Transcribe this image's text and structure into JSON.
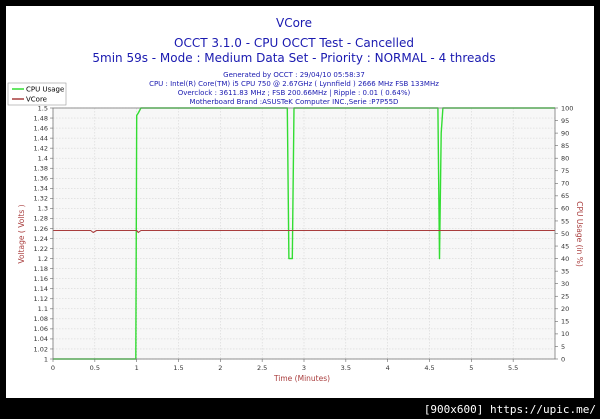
{
  "chart_data": {
    "type": "line",
    "title": "VCore",
    "subtitle_1": "OCCT 3.1.0 - CPU OCCT Test - Cancelled",
    "subtitle_2": "5min 59s - Mode : Medium Data Set - Priority : NORMAL - 4 threads",
    "info_lines": [
      "Generated by OCCT : 29/04/10 05:58:37",
      "CPU : Intel(R) Core(TM) i5 CPU 750 @ 2.67GHz ( Lynnfield ) 2666 MHz FSB 133MHz",
      "Overclock : 3611.83 MHz ; FSB 200.66MHz | Ripple : 0.01 ( 0.64%)",
      "Motherboard Brand :ASUSTeK Computer INC.,Serie :P7P55D"
    ],
    "xlabel": "Time (Minutes)",
    "ylabel_left": "Voltage ( Volts )",
    "ylabel_right": "CPU Usage (in %)",
    "xlim": [
      0,
      6
    ],
    "ylim_left": [
      1.0,
      1.5
    ],
    "ylim_right": [
      0,
      100
    ],
    "x_ticks": [
      0,
      0.5,
      1,
      1.5,
      2,
      2.5,
      3,
      3.5,
      4,
      4.5,
      5,
      5.5
    ],
    "x_tick_labels": [
      "0",
      "0.5",
      "1",
      "1.5",
      "2",
      "2.5",
      "3",
      "3.5",
      "4",
      "4.5",
      "5",
      "5.5"
    ],
    "y_left_ticks": [
      1,
      1.02,
      1.04,
      1.06,
      1.08,
      1.1,
      1.12,
      1.14,
      1.16,
      1.18,
      1.2,
      1.22,
      1.24,
      1.26,
      1.28,
      1.3,
      1.32,
      1.34,
      1.36,
      1.38,
      1.4,
      1.42,
      1.44,
      1.46,
      1.48,
      1.5
    ],
    "y_left_tick_labels": [
      "1",
      "1.02",
      "1.04",
      "1.06",
      "1.08",
      "1.1",
      "1.12",
      "1.14",
      "1.16",
      "1.18",
      "1.2",
      "1.22",
      "1.24",
      "1.26",
      "1.28",
      "1.3",
      "1.32",
      "1.34",
      "1.36",
      "1.38",
      "1.4",
      "1.42",
      "1.44",
      "1.46",
      "1.48",
      "1.5"
    ],
    "y_right_ticks": [
      0,
      5,
      10,
      15,
      20,
      25,
      30,
      35,
      40,
      45,
      50,
      55,
      60,
      65,
      70,
      75,
      80,
      85,
      90,
      95,
      100
    ],
    "y_right_tick_labels": [
      "0",
      "5",
      "10",
      "15",
      "20",
      "25",
      "30",
      "35",
      "40",
      "45",
      "50",
      "55",
      "60",
      "65",
      "70",
      "75",
      "80",
      "85",
      "90",
      "95",
      "100"
    ],
    "grid": true,
    "legend_position": "top-left",
    "series": [
      {
        "name": "CPU Usage",
        "axis": "right",
        "color": "#33dd33",
        "x": [
          0,
          0.99,
          1.0,
          1.02,
          1.05,
          1.1,
          2.8,
          2.82,
          2.84,
          2.86,
          2.88,
          4.6,
          4.62,
          4.64,
          4.66,
          6.0
        ],
        "y": [
          0,
          0,
          97,
          98,
          100,
          100,
          100,
          40,
          40,
          40,
          100,
          100,
          40,
          90,
          100,
          100
        ]
      },
      {
        "name": "VCore",
        "axis": "left",
        "color": "#a93d3d",
        "x": [
          0,
          0.45,
          0.48,
          0.52,
          1.0,
          1.02,
          1.05,
          6.0
        ],
        "y": [
          1.256,
          1.256,
          1.252,
          1.256,
          1.256,
          1.252,
          1.256,
          1.256
        ]
      }
    ]
  },
  "watermark": "[900x600] https://upic.me/"
}
